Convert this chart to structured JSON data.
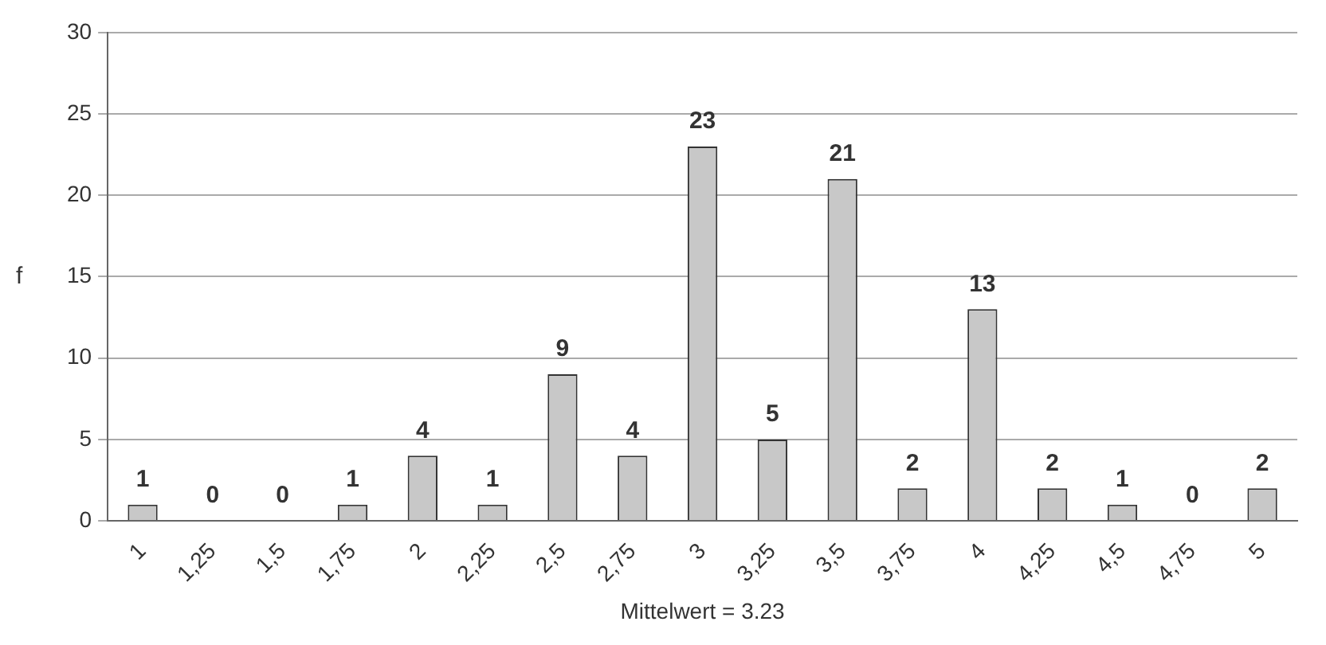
{
  "chart_data": {
    "type": "bar",
    "xlabel": "Mittelwert = 3.23",
    "ylabel": "f",
    "categories": [
      "1",
      "1,25",
      "1,5",
      "1,75",
      "2",
      "2,25",
      "2,5",
      "2,75",
      "3",
      "3,25",
      "3,5",
      "3,75",
      "4",
      "4,25",
      "4,5",
      "4,75",
      "5"
    ],
    "values": [
      1,
      0,
      0,
      1,
      4,
      1,
      9,
      4,
      23,
      5,
      21,
      2,
      13,
      2,
      1,
      0,
      2
    ],
    "color": "#c8c8c8",
    "ylim": [
      0,
      30
    ],
    "yticks": [
      0,
      5,
      10,
      15,
      20,
      25,
      30
    ],
    "grid": "y",
    "data_labels": true,
    "legend": false
  }
}
